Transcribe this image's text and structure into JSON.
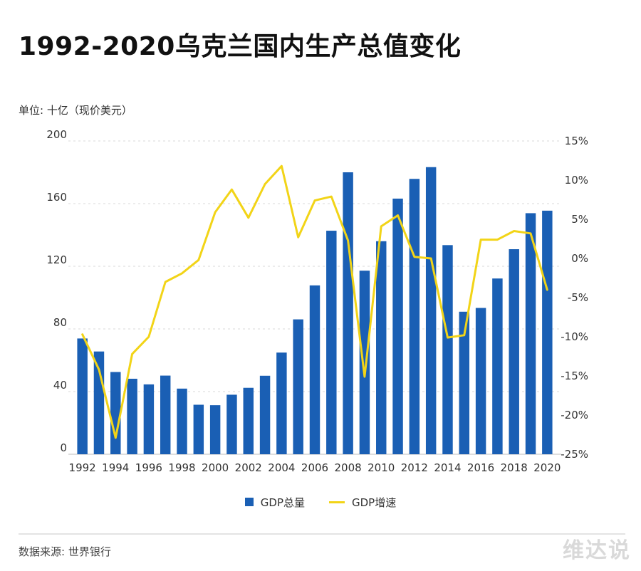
{
  "title": "1992-2020乌克兰国内生产总值变化",
  "unit_label": "单位: 十亿（现价美元）",
  "source_label": "数据来源: 世界银行",
  "watermark": "维达说",
  "colors": {
    "bar": "#1a5fb4",
    "line": "#f2d417",
    "grid": "#d9d9d9"
  },
  "chart_data": {
    "type": "bar",
    "categories": [
      "1992",
      "1993",
      "1994",
      "1995",
      "1996",
      "1997",
      "1998",
      "1999",
      "2000",
      "2001",
      "2002",
      "2003",
      "2004",
      "2005",
      "2006",
      "2007",
      "2008",
      "2009",
      "2010",
      "2011",
      "2012",
      "2013",
      "2014",
      "2015",
      "2016",
      "2017",
      "2018",
      "2019",
      "2020"
    ],
    "x_tick_labels": [
      "1992",
      "1994",
      "1996",
      "1998",
      "2000",
      "2002",
      "2004",
      "2006",
      "2008",
      "2010",
      "2012",
      "2014",
      "2016",
      "2018",
      "2020"
    ],
    "series": [
      {
        "name": "GDP总量",
        "type": "bar",
        "axis": "left",
        "values": [
          73.9,
          65.6,
          52.5,
          48.2,
          44.6,
          50.2,
          41.9,
          31.6,
          31.3,
          38.0,
          42.4,
          50.1,
          64.9,
          86.1,
          107.8,
          142.7,
          180.0,
          117.2,
          136.0,
          163.2,
          175.8,
          183.3,
          133.5,
          91.0,
          93.4,
          112.2,
          130.9,
          153.9,
          155.5
        ]
      },
      {
        "name": "GDP增速",
        "type": "line",
        "axis": "right",
        "values": [
          -9.7,
          -14.2,
          -22.9,
          -12.2,
          -10.0,
          -3.0,
          -1.9,
          -0.2,
          5.9,
          8.8,
          5.2,
          9.5,
          11.8,
          2.7,
          7.4,
          7.9,
          2.3,
          -15.1,
          4.1,
          5.5,
          0.2,
          0.0,
          -10.1,
          -9.8,
          2.4,
          2.4,
          3.5,
          3.2,
          -4.0
        ]
      }
    ],
    "y_left": {
      "ylim": [
        0,
        200
      ],
      "ticks": [
        "0",
        "40",
        "80",
        "120",
        "160",
        "200"
      ]
    },
    "y_right": {
      "ylim": [
        -25,
        15
      ],
      "ticks": [
        "-25%",
        "-20%",
        "-15%",
        "-10%",
        "-5%",
        "0%",
        "5%",
        "10%",
        "15%"
      ]
    },
    "grid": true,
    "legend_position": "bottom-center"
  }
}
